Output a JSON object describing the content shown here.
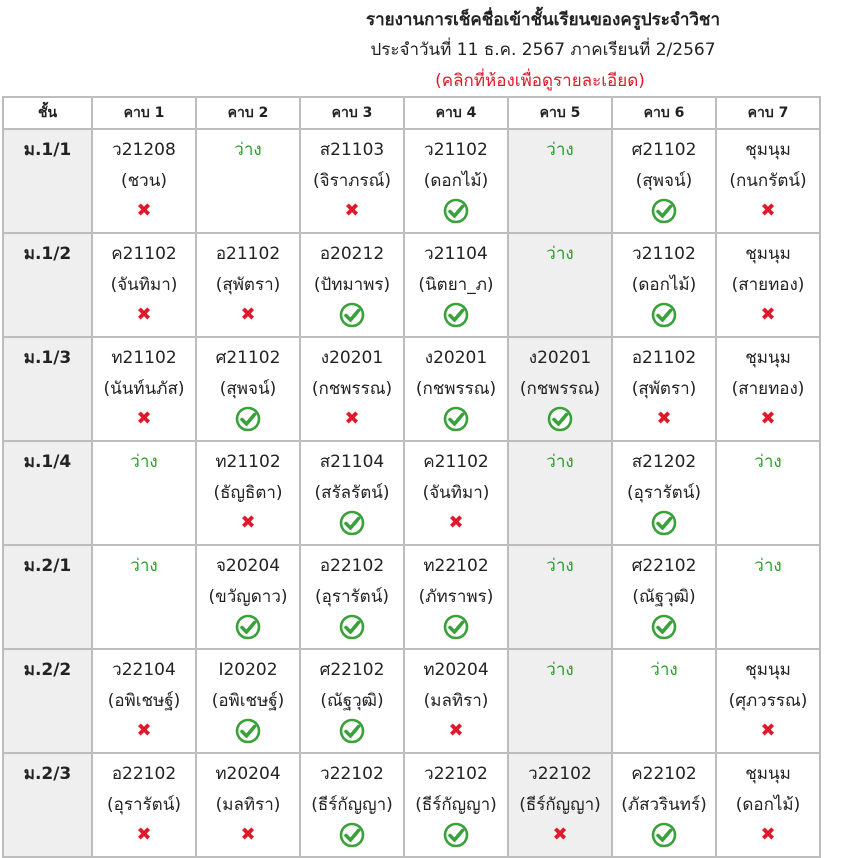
{
  "header": {
    "title": "รายงานการเช็คชื่อเข้าชั้นเรียนของครูประจำวิชา",
    "subtitle": "ประจำวันที่ 11 ธ.ค. 2567 ภาคเรียนที่ 2/2567",
    "hint": "(คลิกที่ห้องเพื่อดูรายละเอียด)"
  },
  "colors": {
    "free": "#23a023",
    "absent": "#e0192a",
    "checked": "#3aa13a",
    "shaded": "#efefef",
    "border": "#bdbdbd"
  },
  "table": {
    "headers": [
      "ชั้น",
      "คาบ 1",
      "คาบ 2",
      "คาบ 3",
      "คาบ 4",
      "คาบ 5",
      "คาบ 6",
      "คาบ 7"
    ],
    "rows": [
      {
        "room": "ม.1/1",
        "cells": [
          {
            "subject": "ว21208",
            "teacher": "(ชวน)",
            "status": "x"
          },
          {
            "subject": "ว่าง",
            "teacher": "",
            "status": "free"
          },
          {
            "subject": "ส21103",
            "teacher": "(จิราภรณ์)",
            "status": "x"
          },
          {
            "subject": "ว21102",
            "teacher": "(ดอกไม้)",
            "status": "check"
          },
          {
            "subject": "ว่าง",
            "teacher": "",
            "status": "free"
          },
          {
            "subject": "ศ21102",
            "teacher": "(สุพจน์)",
            "status": "check"
          },
          {
            "subject": "ชุมนุม",
            "teacher": "(กนกรัตน์)",
            "status": "x"
          }
        ]
      },
      {
        "room": "ม.1/2",
        "cells": [
          {
            "subject": "ค21102",
            "teacher": "(จันทิมา)",
            "status": "x"
          },
          {
            "subject": "อ21102",
            "teacher": "(สุพัตรา)",
            "status": "x"
          },
          {
            "subject": "อ20212",
            "teacher": "(ปัทมาพร)",
            "status": "check"
          },
          {
            "subject": "ว21104",
            "teacher": "(นิตยา_ภ)",
            "status": "check"
          },
          {
            "subject": "ว่าง",
            "teacher": "",
            "status": "free"
          },
          {
            "subject": "ว21102",
            "teacher": "(ดอกไม้)",
            "status": "check"
          },
          {
            "subject": "ชุมนุม",
            "teacher": "(สายทอง)",
            "status": "x"
          }
        ]
      },
      {
        "room": "ม.1/3",
        "cells": [
          {
            "subject": "ท21102",
            "teacher": "(นันท์นภัส)",
            "status": "x"
          },
          {
            "subject": "ศ21102",
            "teacher": "(สุพจน์)",
            "status": "check"
          },
          {
            "subject": "ง20201",
            "teacher": "(กชพรรณ)",
            "status": "x"
          },
          {
            "subject": "ง20201",
            "teacher": "(กชพรรณ)",
            "status": "check"
          },
          {
            "subject": "ง20201",
            "teacher": "(กชพรรณ)",
            "status": "check"
          },
          {
            "subject": "อ21102",
            "teacher": "(สุพัตรา)",
            "status": "x"
          },
          {
            "subject": "ชุมนุม",
            "teacher": "(สายทอง)",
            "status": "x"
          }
        ]
      },
      {
        "room": "ม.1/4",
        "cells": [
          {
            "subject": "ว่าง",
            "teacher": "",
            "status": "free"
          },
          {
            "subject": "ท21102",
            "teacher": "(ธัญธิตา)",
            "status": "x"
          },
          {
            "subject": "ส21104",
            "teacher": "(สรัลรัตน์)",
            "status": "check"
          },
          {
            "subject": "ค21102",
            "teacher": "(จันทิมา)",
            "status": "x"
          },
          {
            "subject": "ว่าง",
            "teacher": "",
            "status": "free"
          },
          {
            "subject": "ส21202",
            "teacher": "(อุรารัตน์)",
            "status": "check"
          },
          {
            "subject": "ว่าง",
            "teacher": "",
            "status": "free"
          }
        ]
      },
      {
        "room": "ม.2/1",
        "cells": [
          {
            "subject": "ว่าง",
            "teacher": "",
            "status": "free"
          },
          {
            "subject": "จ20204",
            "teacher": "(ขวัญดาว)",
            "status": "check"
          },
          {
            "subject": "อ22102",
            "teacher": "(อุรารัตน์)",
            "status": "check"
          },
          {
            "subject": "ท22102",
            "teacher": "(ภัทราพร)",
            "status": "check"
          },
          {
            "subject": "ว่าง",
            "teacher": "",
            "status": "free"
          },
          {
            "subject": "ศ22102",
            "teacher": "(ณัฐวุฒิ)",
            "status": "check"
          },
          {
            "subject": "ว่าง",
            "teacher": "",
            "status": "free"
          }
        ]
      },
      {
        "room": "ม.2/2",
        "cells": [
          {
            "subject": "ว22104",
            "teacher": "(อพิเชษฐ์)",
            "status": "x"
          },
          {
            "subject": "I20202",
            "teacher": "(อพิเชษฐ์)",
            "status": "check"
          },
          {
            "subject": "ศ22102",
            "teacher": "(ณัฐวุฒิ)",
            "status": "check"
          },
          {
            "subject": "ท20204",
            "teacher": "(มลทิรา)",
            "status": "x"
          },
          {
            "subject": "ว่าง",
            "teacher": "",
            "status": "free"
          },
          {
            "subject": "ว่าง",
            "teacher": "",
            "status": "free"
          },
          {
            "subject": "ชุมนุม",
            "teacher": "(ศุภวรรณ)",
            "status": "x"
          }
        ]
      },
      {
        "room": "ม.2/3",
        "cells": [
          {
            "subject": "อ22102",
            "teacher": "(อุรารัตน์)",
            "status": "x"
          },
          {
            "subject": "ท20204",
            "teacher": "(มลทิรา)",
            "status": "x"
          },
          {
            "subject": "ว22102",
            "teacher": "(ธีร์กัญญา)",
            "status": "check"
          },
          {
            "subject": "ว22102",
            "teacher": "(ธีร์กัญญา)",
            "status": "check"
          },
          {
            "subject": "ว22102",
            "teacher": "(ธีร์กัญญา)",
            "status": "x"
          },
          {
            "subject": "ค22102",
            "teacher": "(ภัสวรินทร์)",
            "status": "check"
          },
          {
            "subject": "ชุมนุม",
            "teacher": "(ดอกไม้)",
            "status": "x"
          }
        ]
      }
    ]
  }
}
